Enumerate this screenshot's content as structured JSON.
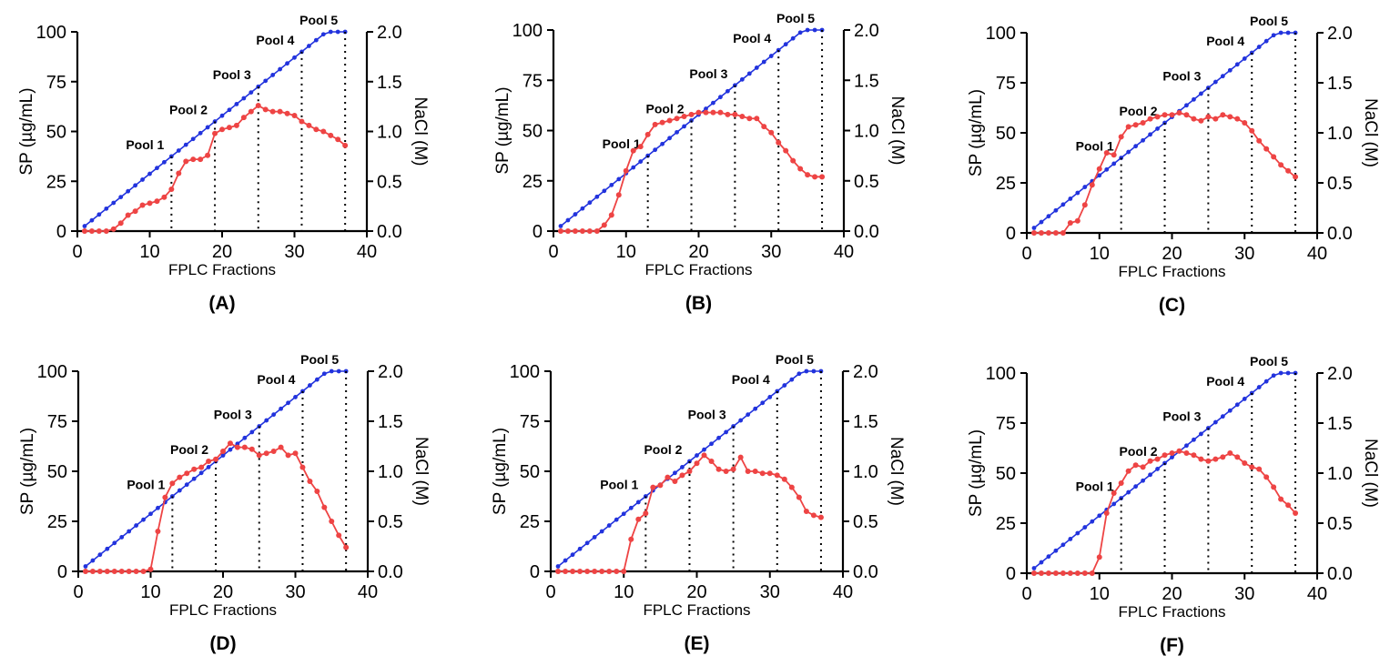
{
  "chart_data": [
    {
      "panel": "(A)",
      "type": "line",
      "xlabel": "FPLC Fractions",
      "ylabel": "SP (µg/mL)",
      "ylabel_right": "NaCl (M)",
      "xlim": [
        0,
        40
      ],
      "ylim": [
        0,
        100
      ],
      "ylim_right": [
        0,
        2.0
      ],
      "xticks": [
        "0",
        "10",
        "20",
        "30",
        "40"
      ],
      "yticks": [
        "0",
        "25",
        "50",
        "75",
        "100"
      ],
      "yticks_right": [
        "0.0",
        "0.5",
        "1.0",
        "1.5",
        "2.0"
      ],
      "pool_labels": [
        "Pool 1",
        "Pool 2",
        "Pool 3",
        "Pool 4",
        "Pool 5"
      ],
      "pool_boundaries": [
        13,
        19,
        25,
        31,
        37
      ],
      "series": [
        {
          "color": "#ee4444",
          "axis": "left",
          "x": [
            1,
            2,
            3,
            4,
            5,
            6,
            7,
            8,
            9,
            10,
            11,
            12,
            13,
            14,
            15,
            16,
            17,
            18,
            19,
            20,
            21,
            22,
            23,
            24,
            25,
            26,
            27,
            28,
            29,
            30,
            31,
            32,
            33,
            34,
            35,
            36,
            37
          ],
          "y": [
            0,
            0,
            0,
            0,
            1,
            4,
            8,
            10,
            13,
            14,
            15,
            17,
            21,
            29,
            35,
            36,
            36,
            38,
            49,
            51,
            52,
            53,
            57,
            60,
            63,
            61,
            60,
            60,
            59,
            58,
            55,
            53,
            51,
            50,
            48,
            46,
            43
          ]
        },
        {
          "color": "#2233dd",
          "axis": "right",
          "x_start": 1,
          "x_end": 37,
          "linear_start": 0.05,
          "linear_slope": 0.058333,
          "plateau": 2.0
        }
      ]
    },
    {
      "panel": "(B)",
      "type": "line",
      "xlabel": "FPLC Fractions",
      "ylabel": "SP (µg/mL)",
      "ylabel_right": "NaCl (M)",
      "xlim": [
        0,
        40
      ],
      "ylim": [
        0,
        100
      ],
      "ylim_right": [
        0,
        2.0
      ],
      "xticks": [
        "0",
        "10",
        "20",
        "30",
        "40"
      ],
      "yticks": [
        "0",
        "25",
        "50",
        "75",
        "100"
      ],
      "yticks_right": [
        "0.0",
        "0.5",
        "1.0",
        "1.5",
        "2.0"
      ],
      "pool_labels": [
        "Pool 1",
        "Pool 2",
        "Pool 3",
        "Pool 4",
        "Pool 5"
      ],
      "pool_boundaries": [
        13,
        19,
        25,
        31,
        37
      ],
      "series": [
        {
          "color": "#ee4444",
          "axis": "left",
          "x": [
            1,
            2,
            3,
            4,
            5,
            6,
            7,
            8,
            9,
            10,
            11,
            12,
            13,
            14,
            15,
            16,
            17,
            18,
            19,
            20,
            21,
            22,
            23,
            24,
            25,
            26,
            27,
            28,
            29,
            30,
            31,
            32,
            33,
            34,
            35,
            36,
            37
          ],
          "y": [
            0,
            0,
            0,
            0,
            0,
            0,
            3,
            8,
            18,
            30,
            40,
            42,
            48,
            53,
            54,
            55,
            56,
            57,
            58,
            59,
            59,
            59,
            59,
            58,
            58,
            57,
            56,
            56,
            52,
            49,
            44,
            40,
            35,
            31,
            28,
            27,
            27
          ]
        },
        {
          "color": "#2233dd",
          "axis": "right",
          "x_start": 1,
          "x_end": 37,
          "linear_start": 0.05,
          "linear_slope": 0.058333,
          "plateau": 2.0
        }
      ]
    },
    {
      "panel": "(C)",
      "type": "line",
      "xlabel": "FPLC Fractions",
      "ylabel": "SP (µg/mL)",
      "ylabel_right": "NaCl (M)",
      "xlim": [
        0,
        40
      ],
      "ylim": [
        0,
        100
      ],
      "ylim_right": [
        0,
        2.0
      ],
      "xticks": [
        "0",
        "10",
        "20",
        "30",
        "40"
      ],
      "yticks": [
        "0",
        "25",
        "50",
        "75",
        "100"
      ],
      "yticks_right": [
        "0.0",
        "0.5",
        "1.0",
        "1.5",
        "2.0"
      ],
      "pool_labels": [
        "Pool 1",
        "Pool 2",
        "Pool 3",
        "Pool 4",
        "Pool 5"
      ],
      "pool_boundaries": [
        13,
        19,
        25,
        31,
        37
      ],
      "series": [
        {
          "color": "#ee4444",
          "axis": "left",
          "x": [
            1,
            2,
            3,
            4,
            5,
            6,
            7,
            8,
            9,
            10,
            11,
            12,
            13,
            14,
            15,
            16,
            17,
            18,
            19,
            20,
            21,
            22,
            23,
            24,
            25,
            26,
            27,
            28,
            29,
            30,
            31,
            32,
            33,
            34,
            35,
            36,
            37
          ],
          "y": [
            0,
            0,
            0,
            0,
            0,
            5,
            6,
            14,
            24,
            32,
            40,
            39,
            48,
            53,
            54,
            55,
            57,
            58,
            59,
            59,
            60,
            59,
            57,
            56,
            58,
            57,
            59,
            58,
            57,
            55,
            51,
            46,
            42,
            38,
            34,
            31,
            28
          ]
        },
        {
          "color": "#2233dd",
          "axis": "right",
          "x_start": 1,
          "x_end": 37,
          "linear_start": 0.05,
          "linear_slope": 0.058333,
          "plateau": 2.0
        }
      ]
    },
    {
      "panel": "(D)",
      "type": "line",
      "xlabel": "FPLC Fractions",
      "ylabel": "SP (µg/mL)",
      "ylabel_right": "NaCl (M)",
      "xlim": [
        0,
        40
      ],
      "ylim": [
        0,
        100
      ],
      "ylim_right": [
        0,
        2.0
      ],
      "xticks": [
        "0",
        "10",
        "20",
        "30",
        "40"
      ],
      "yticks": [
        "0",
        "25",
        "50",
        "75",
        "100"
      ],
      "yticks_right": [
        "0.0",
        "0.5",
        "1.0",
        "1.5",
        "2.0"
      ],
      "pool_labels": [
        "Pool 1",
        "Pool 2",
        "Pool 3",
        "Pool 4",
        "Pool 5"
      ],
      "pool_boundaries": [
        13,
        19,
        25,
        31,
        37
      ],
      "series": [
        {
          "color": "#ee4444",
          "axis": "left",
          "x": [
            1,
            2,
            3,
            4,
            5,
            6,
            7,
            8,
            9,
            10,
            11,
            12,
            13,
            14,
            15,
            16,
            17,
            18,
            19,
            20,
            21,
            22,
            23,
            24,
            25,
            26,
            27,
            28,
            29,
            30,
            31,
            32,
            33,
            34,
            35,
            36,
            37
          ],
          "y": [
            0,
            0,
            0,
            0,
            0,
            0,
            0,
            0,
            0,
            1,
            20,
            37,
            44,
            47,
            49,
            51,
            52,
            55,
            56,
            60,
            64,
            62,
            62,
            61,
            58,
            59,
            60,
            62,
            58,
            59,
            52,
            45,
            40,
            32,
            25,
            18,
            12
          ]
        },
        {
          "color": "#2233dd",
          "axis": "right",
          "x_start": 1,
          "x_end": 37,
          "linear_start": 0.05,
          "linear_slope": 0.058333,
          "plateau": 2.0
        }
      ]
    },
    {
      "panel": "(E)",
      "type": "line",
      "xlabel": "FPLC Fractions",
      "ylabel": "SP (µg/mL)",
      "ylabel_right": "NaCl (M)",
      "xlim": [
        0,
        40
      ],
      "ylim": [
        0,
        100
      ],
      "ylim_right": [
        0,
        2.0
      ],
      "xticks": [
        "0",
        "10",
        "20",
        "30",
        "40"
      ],
      "yticks": [
        "0",
        "25",
        "50",
        "75",
        "100"
      ],
      "yticks_right": [
        "0.0",
        "0.5",
        "1.0",
        "1.5",
        "2.0"
      ],
      "pool_labels": [
        "Pool 1",
        "Pool 2",
        "Pool 3",
        "Pool 4",
        "Pool 5"
      ],
      "pool_boundaries": [
        13,
        19,
        25,
        31,
        37
      ],
      "series": [
        {
          "color": "#ee4444",
          "axis": "left",
          "x": [
            1,
            2,
            3,
            4,
            5,
            6,
            7,
            8,
            9,
            10,
            11,
            12,
            13,
            14,
            15,
            16,
            17,
            18,
            19,
            20,
            21,
            22,
            23,
            24,
            25,
            26,
            27,
            28,
            29,
            30,
            31,
            32,
            33,
            34,
            35,
            36,
            37
          ],
          "y": [
            0,
            0,
            0,
            0,
            0,
            0,
            0,
            0,
            0,
            0,
            16,
            26,
            29,
            42,
            43,
            47,
            45,
            48,
            50,
            54,
            58,
            55,
            51,
            50,
            51,
            57,
            50,
            50,
            49,
            49,
            48,
            46,
            42,
            37,
            30,
            28,
            27
          ]
        },
        {
          "color": "#2233dd",
          "axis": "right",
          "x_start": 1,
          "x_end": 37,
          "linear_start": 0.05,
          "linear_slope": 0.058333,
          "plateau": 2.0
        }
      ]
    },
    {
      "panel": "(F)",
      "type": "line",
      "xlabel": "FPLC Fractions",
      "ylabel": "SP (µg/mL)",
      "ylabel_right": "NaCl (M)",
      "xlim": [
        0,
        40
      ],
      "ylim": [
        0,
        100
      ],
      "ylim_right": [
        0,
        2.0
      ],
      "xticks": [
        "0",
        "10",
        "20",
        "30",
        "40"
      ],
      "yticks": [
        "0",
        "25",
        "50",
        "75",
        "100"
      ],
      "yticks_right": [
        "0.0",
        "0.5",
        "1.0",
        "1.5",
        "2.0"
      ],
      "pool_labels": [
        "Pool 1",
        "Pool 2",
        "Pool 3",
        "Pool 4",
        "Pool 5"
      ],
      "pool_boundaries": [
        13,
        19,
        25,
        31,
        37
      ],
      "series": [
        {
          "color": "#ee4444",
          "axis": "left",
          "x": [
            1,
            2,
            3,
            4,
            5,
            6,
            7,
            8,
            9,
            10,
            11,
            12,
            13,
            14,
            15,
            16,
            17,
            18,
            19,
            20,
            21,
            22,
            23,
            24,
            25,
            26,
            27,
            28,
            29,
            30,
            31,
            32,
            33,
            34,
            35,
            36,
            37
          ],
          "y": [
            0,
            0,
            0,
            0,
            0,
            0,
            0,
            0,
            0,
            8,
            30,
            40,
            45,
            51,
            54,
            53,
            56,
            57,
            59,
            60,
            61,
            60,
            59,
            57,
            56,
            57,
            58,
            60,
            58,
            55,
            53,
            52,
            48,
            43,
            37,
            34,
            30
          ]
        },
        {
          "color": "#2233dd",
          "axis": "right",
          "x_start": 1,
          "x_end": 37,
          "linear_start": 0.05,
          "linear_slope": 0.058333,
          "plateau": 2.0
        }
      ]
    }
  ]
}
